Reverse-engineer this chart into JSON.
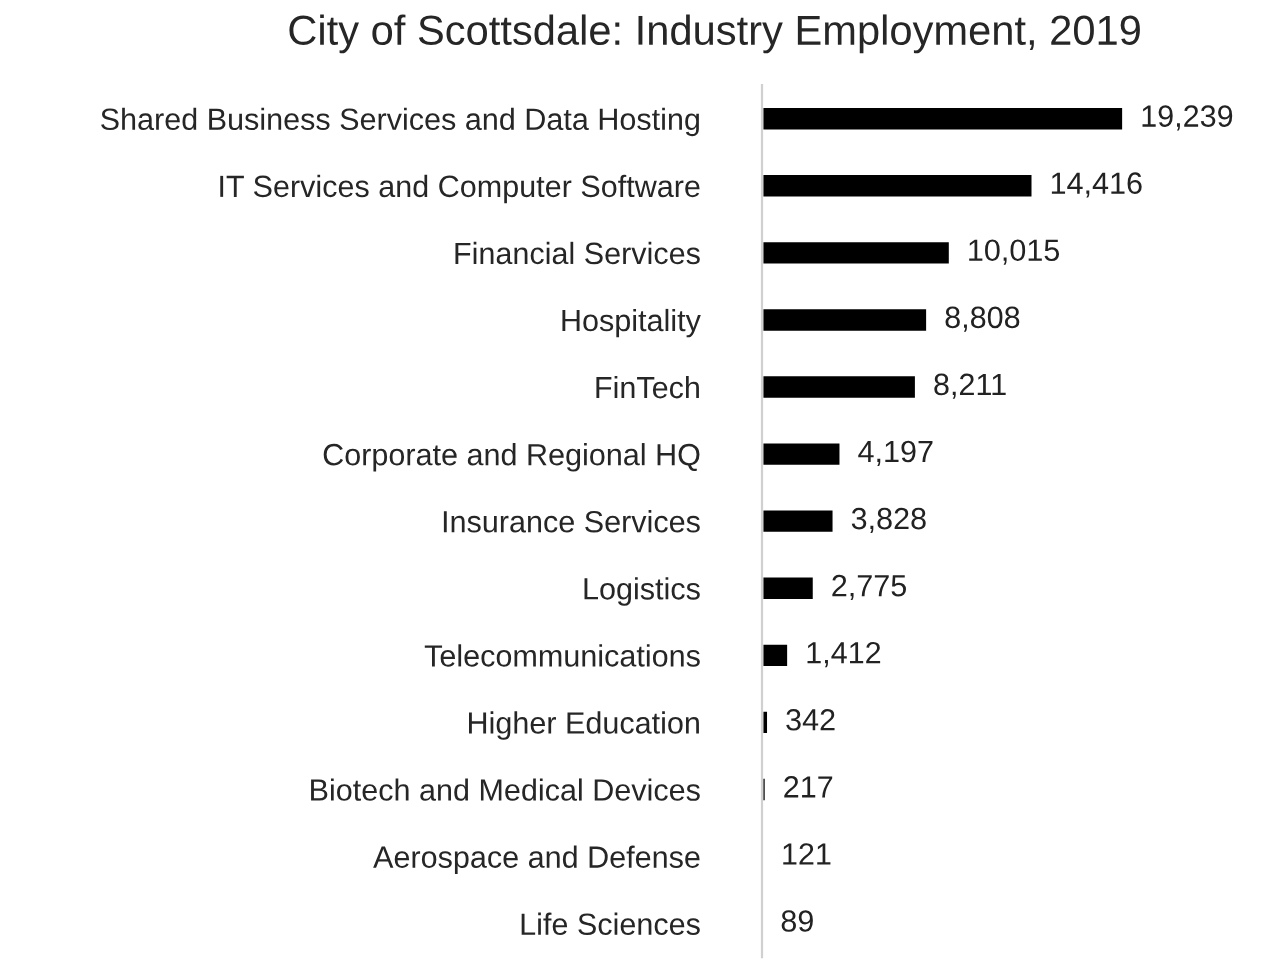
{
  "chart_data": {
    "type": "bar",
    "orientation": "horizontal",
    "title": "City of Scottsdale: Industry Employment, 2019",
    "categories": [
      "Shared Business Services and Data Hosting",
      "IT Services and Computer Software",
      "Financial Services",
      "Hospitality",
      "FinTech",
      "Corporate and Regional HQ",
      "Insurance Services",
      "Logistics",
      "Telecommunications",
      "Higher Education",
      "Biotech and Medical Devices",
      "Aerospace and Defense",
      "Life Sciences"
    ],
    "values": [
      19239,
      14416,
      10015,
      8808,
      8211,
      4197,
      3828,
      2775,
      1412,
      342,
      217,
      121,
      89
    ],
    "value_labels": [
      "19,239",
      "14,416",
      "10,015",
      "8,808",
      "8,211",
      "4,197",
      "3,828",
      "2,775",
      "1,412",
      "342",
      "217",
      "121",
      "89"
    ],
    "color": "#000000",
    "grid": false,
    "legend": false,
    "tick_labels": "y"
  }
}
